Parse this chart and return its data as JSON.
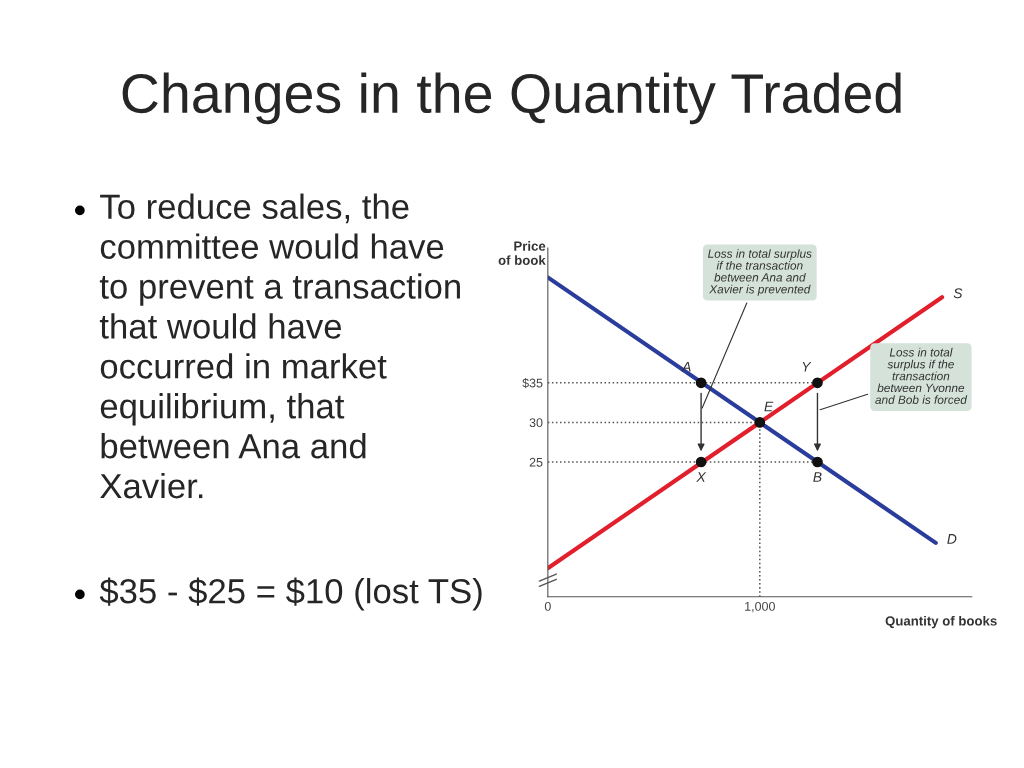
{
  "chart_data": {
    "type": "line",
    "title": "Changes in the Quantity Traded",
    "xlabel": "Quantity of books",
    "ylabel": "Price\nof book",
    "xlim": [
      0,
      2000
    ],
    "ylim": [
      8,
      52
    ],
    "xticks": [
      0,
      {
        "value": 1000,
        "label": "1,000"
      }
    ],
    "yticks": [
      25,
      30,
      {
        "value": 35,
        "label": "$35"
      }
    ],
    "grid": false,
    "series": [
      {
        "name": "D",
        "color": "#2b3d9c",
        "x": [
          0,
          1830
        ],
        "values": [
          48.3,
          14.8
        ]
      },
      {
        "name": "S",
        "color": "#e21f2c",
        "x": [
          0,
          1860
        ],
        "values": [
          11.6,
          45.8
        ]
      },
      {
        "name": "A",
        "type": "scatter",
        "color": "#111111",
        "x": [
          723
        ],
        "values": [
          35
        ]
      },
      {
        "name": "Y",
        "type": "scatter",
        "color": "#111111",
        "x": [
          1272
        ],
        "values": [
          35
        ]
      },
      {
        "name": "E",
        "type": "scatter",
        "color": "#111111",
        "x": [
          1000
        ],
        "values": [
          30
        ]
      },
      {
        "name": "X",
        "type": "scatter",
        "color": "#111111",
        "x": [
          723
        ],
        "values": [
          25
        ]
      },
      {
        "name": "B",
        "type": "scatter",
        "color": "#111111",
        "x": [
          1272
        ],
        "values": [
          25
        ]
      }
    ],
    "ref_lines": [
      {
        "axis": "y",
        "value": 35,
        "line_style": "dotted"
      },
      {
        "axis": "y",
        "value": 30,
        "line_style": "dotted"
      },
      {
        "axis": "y",
        "value": 25,
        "line_style": "dotted"
      },
      {
        "axis": "x",
        "value": 1000,
        "line_style": "dotted"
      }
    ],
    "annotations": [
      "Loss in total surplus\nif the transaction\nbetween Ana and\nXavier is prevented",
      "Loss in total\nsurplus if the\ntransaction\nbetween Yvonne\nand Bob is forced",
      "To reduce sales, the\ncommittee would have\nto prevent a transaction\nthat would have\noccurred in market\nequilibrium, that\nbetween Ana and\nXavier.",
      "$35 - $25 = $10 (lost TS)"
    ]
  }
}
